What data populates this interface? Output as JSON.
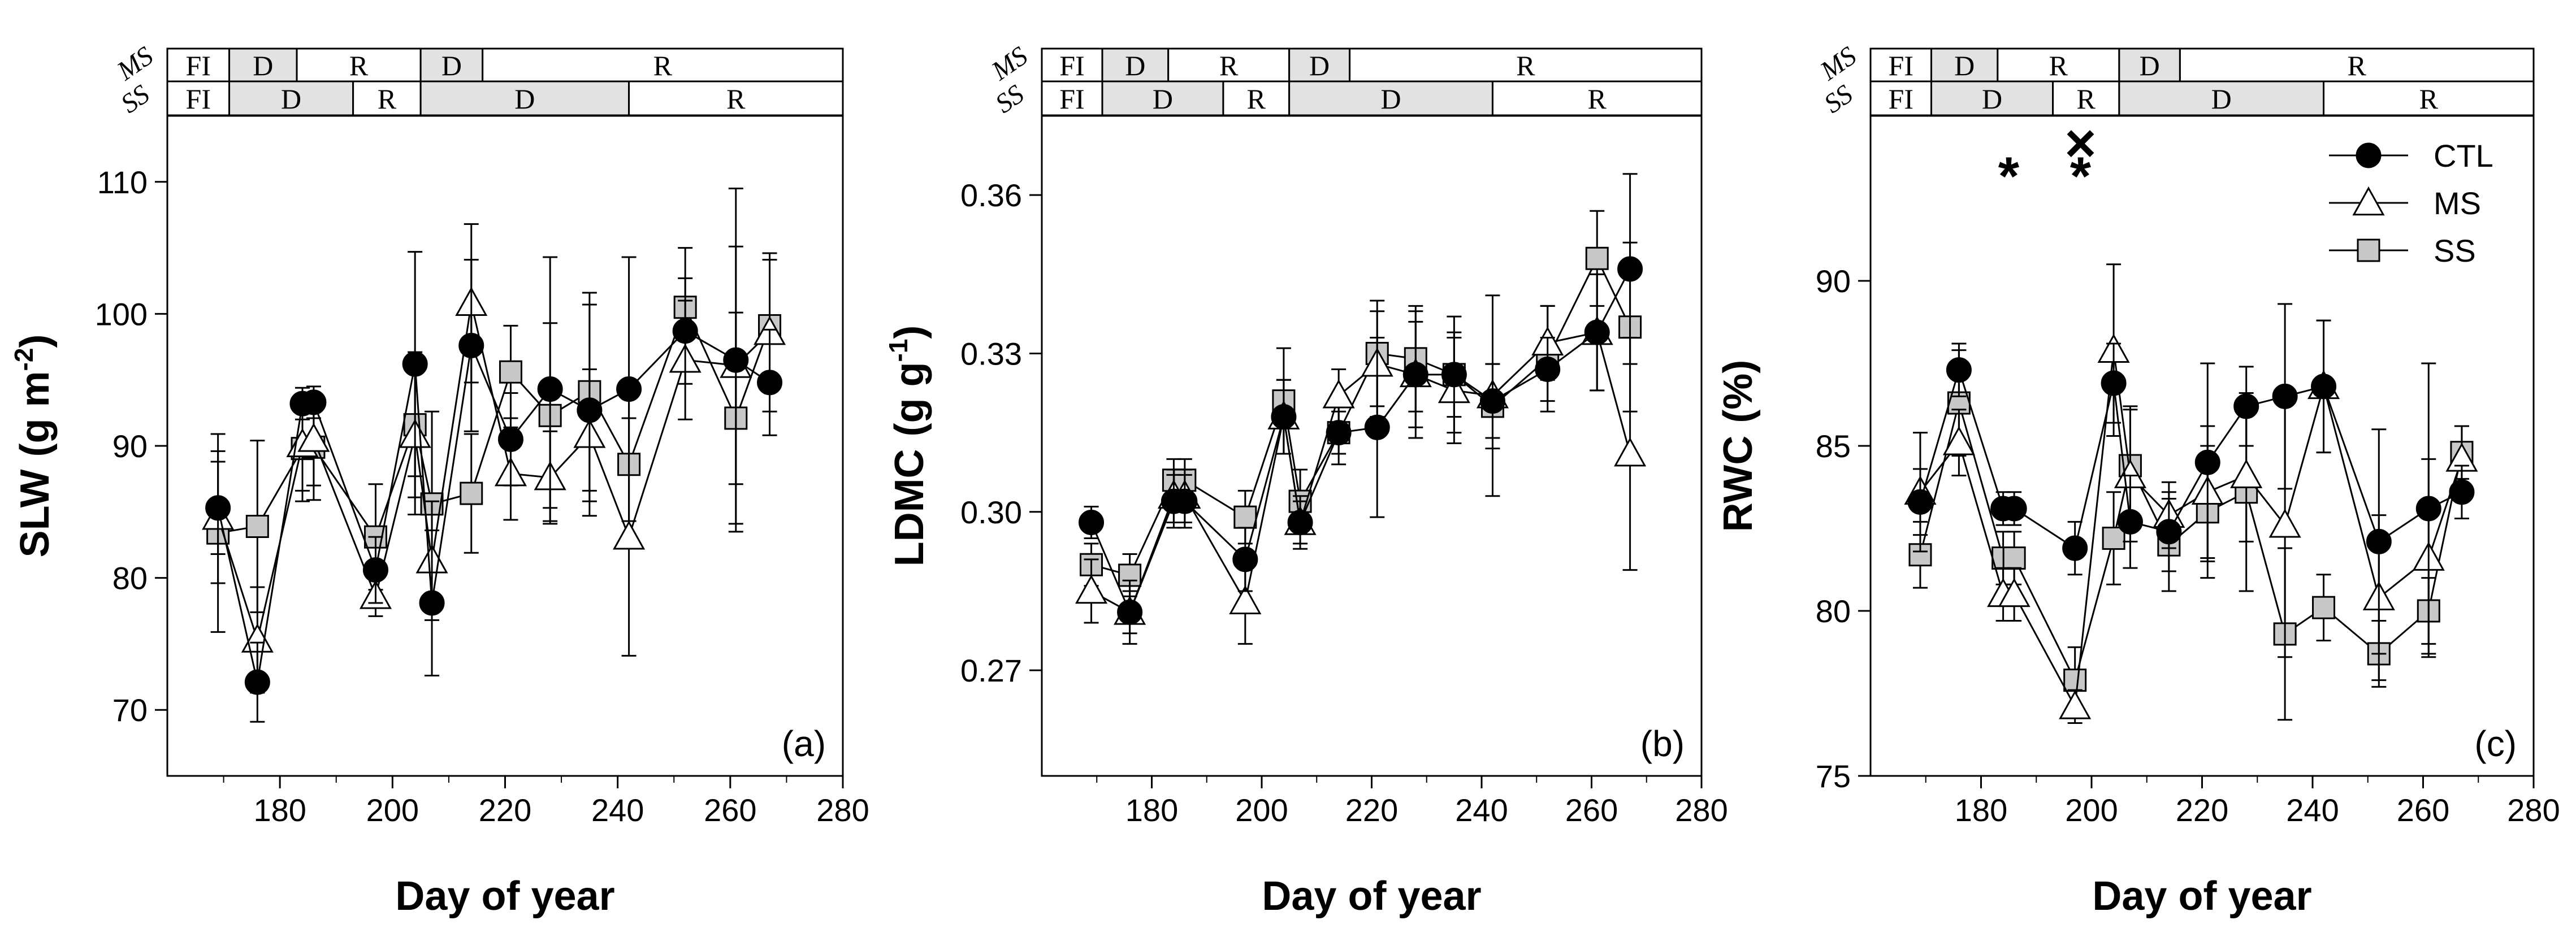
{
  "figure": {
    "x_label": "Day of year",
    "legend": [
      {
        "name": "CTL",
        "marker": "circle"
      },
      {
        "name": "MS",
        "marker": "triangle"
      },
      {
        "name": "SS",
        "marker": "square"
      }
    ],
    "colors": {
      "ctl": "#000000",
      "ms_fill": "#ffffff",
      "ss_fill": "#c8c8c8",
      "bar_shade": "#e2e2e2",
      "line": "#000000"
    }
  },
  "chart_data": [
    {
      "type": "line",
      "panel_label": "(a)",
      "ylabel": "SLW",
      "ylabel_unit": "(g m",
      "ylabel_sup": "-2",
      "ylabel_close": ")",
      "xlim": [
        160,
        280
      ],
      "ylim": [
        65,
        115
      ],
      "xticks": [
        180,
        200,
        220,
        240,
        260,
        280
      ],
      "yticks": [
        70,
        80,
        90,
        100,
        110
      ],
      "ytick_labels": [
        "70",
        "80",
        "90",
        "100",
        "110"
      ],
      "series": [
        {
          "name": "CTL",
          "x": [
            169,
            176,
            184,
            186,
            197,
            204,
            207,
            214,
            221,
            228,
            235,
            242,
            252,
            261,
            267
          ],
          "y": [
            85.3,
            72.1,
            93.2,
            93.3,
            80.6,
            96.2,
            78.1,
            97.6,
            90.5,
            94.3,
            92.7,
            94.3,
            98.7,
            96.5,
            94.8
          ],
          "err": [
            3.5,
            3.0,
            1.2,
            1.2,
            2.5,
            8.5,
            5.5,
            6.5,
            3.5,
            10.0,
            8.0,
            10.0,
            4.0,
            13.0,
            4.0
          ]
        },
        {
          "name": "MS",
          "x": [
            169,
            176,
            184,
            186,
            197,
            204,
            207,
            214,
            221,
            228,
            235,
            242,
            252,
            261,
            267
          ],
          "y": [
            84.6,
            75.3,
            90.1,
            90.5,
            78.6,
            90.8,
            81.3,
            100.8,
            87.9,
            87.6,
            90.8,
            83.1,
            96.5,
            96.1,
            98.6
          ],
          "err": [
            5.0,
            4.0,
            3.5,
            3.5,
            1.5,
            6.0,
            4.5,
            6.0,
            3.5,
            3.5,
            5.0,
            9.0,
            4.5,
            9.0,
            6.0
          ]
        },
        {
          "name": "SS",
          "x": [
            169,
            176,
            184,
            186,
            197,
            204,
            207,
            214,
            221,
            228,
            235,
            242,
            252,
            261,
            267
          ],
          "y": [
            83.4,
            83.9,
            89.8,
            89.9,
            83.1,
            91.6,
            85.6,
            86.4,
            95.6,
            92.3,
            94.1,
            88.6,
            100.5,
            92.1,
            99.1
          ],
          "err": [
            7.5,
            6.5,
            4.0,
            4.0,
            4.0,
            5.5,
            7.0,
            4.5,
            3.5,
            7.0,
            7.5,
            5.5,
            4.5,
            8.0,
            5.0
          ]
        }
      ]
    },
    {
      "type": "line",
      "panel_label": "(b)",
      "ylabel": "LDMC",
      "ylabel_unit": "(g g",
      "ylabel_sup": "-1",
      "ylabel_close": ")",
      "xlim": [
        160,
        280
      ],
      "ylim": [
        0.25,
        0.375
      ],
      "xticks": [
        180,
        200,
        220,
        240,
        260,
        280
      ],
      "yticks": [
        0.27,
        0.3,
        0.33,
        0.36
      ],
      "ytick_labels": [
        "0.27",
        "0.30",
        "0.33",
        "0.36"
      ],
      "series": [
        {
          "name": "CTL",
          "x": [
            169,
            176,
            184,
            186,
            197,
            204,
            207,
            214,
            221,
            228,
            235,
            242,
            252,
            261,
            267
          ],
          "y": [
            0.298,
            0.281,
            0.302,
            0.302,
            0.291,
            0.318,
            0.298,
            0.315,
            0.316,
            0.326,
            0.326,
            0.321,
            0.327,
            0.334,
            0.346
          ],
          "err": [
            0.003,
            0.004,
            0.005,
            0.005,
            0.006,
            0.007,
            0.004,
            0.004,
            0.017,
            0.01,
            0.008,
            0.007,
            0.006,
            0.011,
            0.018
          ]
        },
        {
          "name": "MS",
          "x": [
            169,
            176,
            184,
            186,
            197,
            204,
            207,
            214,
            221,
            228,
            235,
            242,
            252,
            261,
            267
          ],
          "y": [
            0.285,
            0.281,
            0.303,
            0.303,
            0.283,
            0.318,
            0.298,
            0.322,
            0.328,
            0.326,
            0.323,
            0.322,
            0.332,
            0.334,
            0.311
          ],
          "err": [
            0.006,
            0.006,
            0.005,
            0.005,
            0.008,
            0.007,
            0.005,
            0.005,
            0.01,
            0.012,
            0.01,
            0.019,
            0.007,
            0.011,
            0.022
          ]
        },
        {
          "name": "SS",
          "x": [
            169,
            176,
            184,
            186,
            197,
            204,
            207,
            214,
            221,
            228,
            235,
            242,
            252,
            261,
            267
          ],
          "y": [
            0.29,
            0.288,
            0.306,
            0.306,
            0.299,
            0.321,
            0.302,
            0.315,
            0.33,
            0.329,
            0.326,
            0.32,
            0.329,
            0.348,
            0.335
          ],
          "err": [
            0.004,
            0.004,
            0.004,
            0.004,
            0.005,
            0.01,
            0.006,
            0.006,
            0.01,
            0.01,
            0.011,
            0.008,
            0.01,
            0.009,
            0.016
          ]
        }
      ]
    },
    {
      "type": "line",
      "panel_label": "(c)",
      "ylabel": "RWC",
      "ylabel_unit": "(%)",
      "ylabel_sup": "",
      "ylabel_close": "",
      "xlim": [
        160,
        280
      ],
      "ylim": [
        75,
        95
      ],
      "xticks": [
        180,
        200,
        220,
        240,
        260,
        280
      ],
      "yticks": [
        75,
        80,
        85,
        90
      ],
      "ytick_labels": [
        "75",
        "80",
        "85",
        "90"
      ],
      "series": [
        {
          "name": "CTL",
          "x": [
            169,
            176,
            184,
            186,
            197,
            204,
            207,
            214,
            221,
            228,
            235,
            242,
            252,
            261,
            267
          ],
          "y": [
            83.3,
            87.3,
            83.1,
            83.1,
            81.9,
            86.9,
            82.7,
            82.4,
            84.5,
            86.2,
            86.5,
            86.8,
            82.1,
            83.1,
            83.6
          ],
          "err": [
            1.0,
            0.8,
            0.5,
            0.5,
            0.8,
            1.2,
            1.4,
            1.2,
            3.0,
            1.2,
            2.8,
            2.0,
            3.4,
            4.4,
            0.8
          ]
        },
        {
          "name": "MS",
          "x": [
            169,
            176,
            184,
            186,
            197,
            204,
            207,
            214,
            221,
            228,
            235,
            242,
            252,
            261,
            267
          ],
          "y": [
            83.6,
            85.1,
            80.5,
            80.5,
            77.1,
            87.9,
            84.1,
            82.9,
            83.6,
            84.1,
            82.6,
            86.8,
            80.4,
            81.6,
            84.6
          ],
          "err": [
            1.8,
            1.0,
            0.8,
            0.8,
            0.5,
            2.6,
            2.0,
            1.0,
            2.0,
            2.0,
            4.0,
            2.0,
            2.5,
            3.0,
            1.0
          ]
        },
        {
          "name": "SS",
          "x": [
            169,
            176,
            184,
            186,
            197,
            204,
            207,
            214,
            221,
            228,
            235,
            242,
            252,
            261,
            267
          ],
          "y": [
            81.7,
            86.3,
            81.6,
            81.6,
            77.9,
            82.2,
            84.4,
            82.0,
            83.0,
            83.6,
            79.3,
            80.1,
            78.7,
            80.0,
            84.8
          ],
          "err": [
            1.0,
            1.6,
            0.8,
            0.8,
            1.0,
            1.4,
            1.8,
            1.4,
            2.0,
            3.0,
            2.6,
            1.0,
            1.0,
            1.0,
            0.8
          ]
        }
      ],
      "annotations": [
        {
          "x": 185,
          "y": 93.3,
          "text": "*"
        },
        {
          "x": 198,
          "y": 93.3,
          "text": "*"
        },
        {
          "x": 198,
          "y": 94.3,
          "text": "×"
        }
      ]
    }
  ],
  "treatment_bars": {
    "row_labels": [
      "MS",
      "SS"
    ],
    "xlim": [
      160,
      280
    ],
    "MS": [
      {
        "start": 160,
        "end": 171,
        "label": "FI",
        "shaded": false
      },
      {
        "start": 171,
        "end": 183,
        "label": "D",
        "shaded": true
      },
      {
        "start": 183,
        "end": 205,
        "label": "R",
        "shaded": false
      },
      {
        "start": 205,
        "end": 216,
        "label": "D",
        "shaded": true
      },
      {
        "start": 216,
        "end": 280,
        "label": "R",
        "shaded": false
      }
    ],
    "SS": [
      {
        "start": 160,
        "end": 171,
        "label": "FI",
        "shaded": false
      },
      {
        "start": 171,
        "end": 193,
        "label": "D",
        "shaded": true
      },
      {
        "start": 193,
        "end": 205,
        "label": "R",
        "shaded": false
      },
      {
        "start": 205,
        "end": 242,
        "label": "D",
        "shaded": true
      },
      {
        "start": 242,
        "end": 280,
        "label": "R",
        "shaded": false
      }
    ]
  }
}
